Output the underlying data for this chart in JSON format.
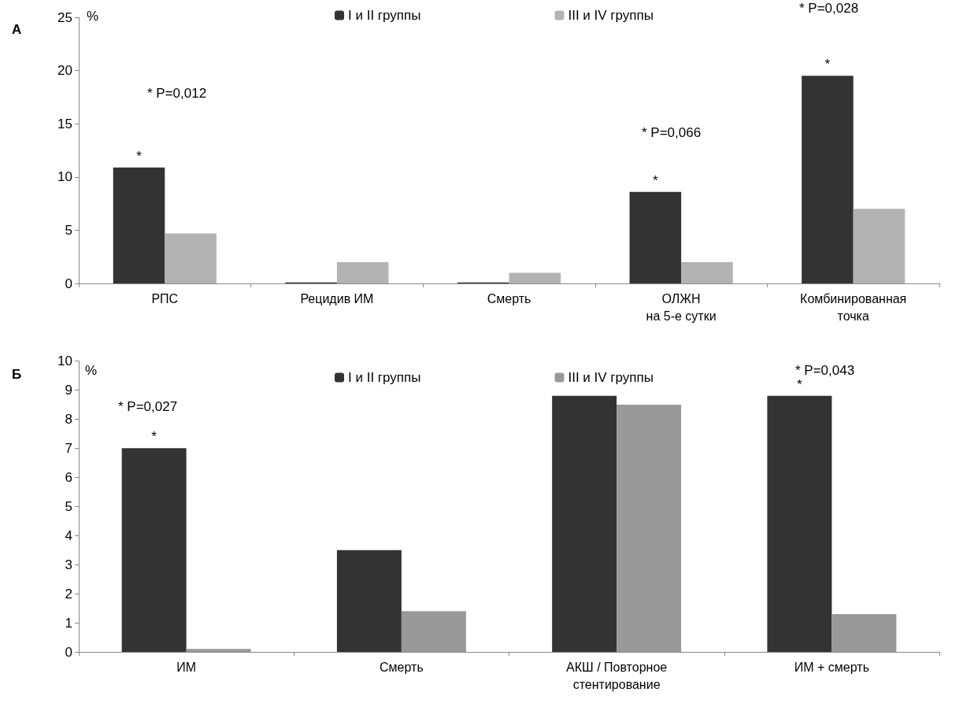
{
  "chart_data": [
    {
      "type": "bar",
      "title": "А",
      "categories": [
        "РПС",
        "Рецидив ИМ",
        "Смерть",
        "ОЛЖН\nна 5-е сутки",
        "Комбинированная\nточка"
      ],
      "series": [
        {
          "name": "I и II группы",
          "color": "#333333",
          "values": [
            10.9,
            0.1,
            0.1,
            8.6,
            19.5
          ]
        },
        {
          "name": "III и IV группы",
          "color": "#b3b3b3",
          "values": [
            4.7,
            2,
            1,
            2,
            7
          ]
        }
      ],
      "ylim": [
        0,
        25
      ],
      "yticks": [
        0,
        5,
        10,
        15,
        20,
        25
      ],
      "grid": false,
      "legend": "top",
      "annotations": [
        "%",
        {
          "text": "*",
          "x": "РПС",
          "y": 10.9
        },
        "* P=0,012",
        {
          "text": "*",
          "x": "ОЛЖН\nна 5-е сутки",
          "y": 8.6
        },
        "* P=0,066",
        {
          "text": "*",
          "x": "Комбинированная\nточка",
          "y": 19.5
        },
        "* P=0,028"
      ]
    },
    {
      "type": "bar",
      "title": "Б",
      "categories": [
        "ИМ",
        "Смерть",
        "АКШ / Повторное\nстентирование",
        "ИМ + смерть"
      ],
      "series": [
        {
          "name": "I и II группы",
          "color": "#333333",
          "values": [
            7,
            3.5,
            8.8,
            8.8
          ]
        },
        {
          "name": "III и IV группы",
          "color": "#999999",
          "values": [
            0.1,
            1.4,
            8.5,
            1.3
          ]
        }
      ],
      "ylim": [
        0,
        10
      ],
      "yticks": [
        0,
        1,
        2,
        3,
        4,
        5,
        6,
        7,
        8,
        9,
        10
      ],
      "grid": false,
      "legend": "top",
      "annotations": [
        "%",
        {
          "text": "*",
          "x": "ИМ",
          "y": 7
        },
        "* P=0,027",
        {
          "text": "*",
          "x": "ИМ + смерть",
          "y": 8.8
        },
        "* P=0,043"
      ]
    }
  ]
}
